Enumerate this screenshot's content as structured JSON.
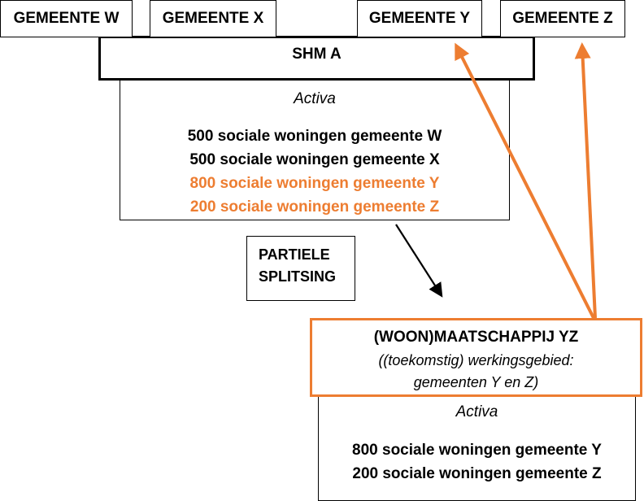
{
  "municipalities": {
    "w": "GEMEENTE W",
    "x": "GEMEENTE X",
    "y": "GEMEENTE Y",
    "z": "GEMEENTE Z"
  },
  "shm": {
    "title": "SHM A",
    "activa_label": "Activa",
    "assets": [
      "500 sociale woningen gemeente W",
      "500 sociale woningen gemeente X",
      "800 sociale woningen gemeente Y",
      "200 sociale woningen gemeente Z"
    ]
  },
  "split": {
    "line1": "PARTIELE",
    "line2": "SPLITSING"
  },
  "new_company": {
    "title": "(WOON)MAATSCHAPPIJ YZ",
    "subtitle_line1": "((toekomstig) werkingsgebied:",
    "subtitle_line2": "gemeenten Y en Z)",
    "activa_label": "Activa",
    "assets": [
      "800 sociale woningen gemeente Y",
      "200 sociale woningen gemeente Z"
    ]
  },
  "colors": {
    "accent": "#ED7D31",
    "text": "#000000"
  }
}
